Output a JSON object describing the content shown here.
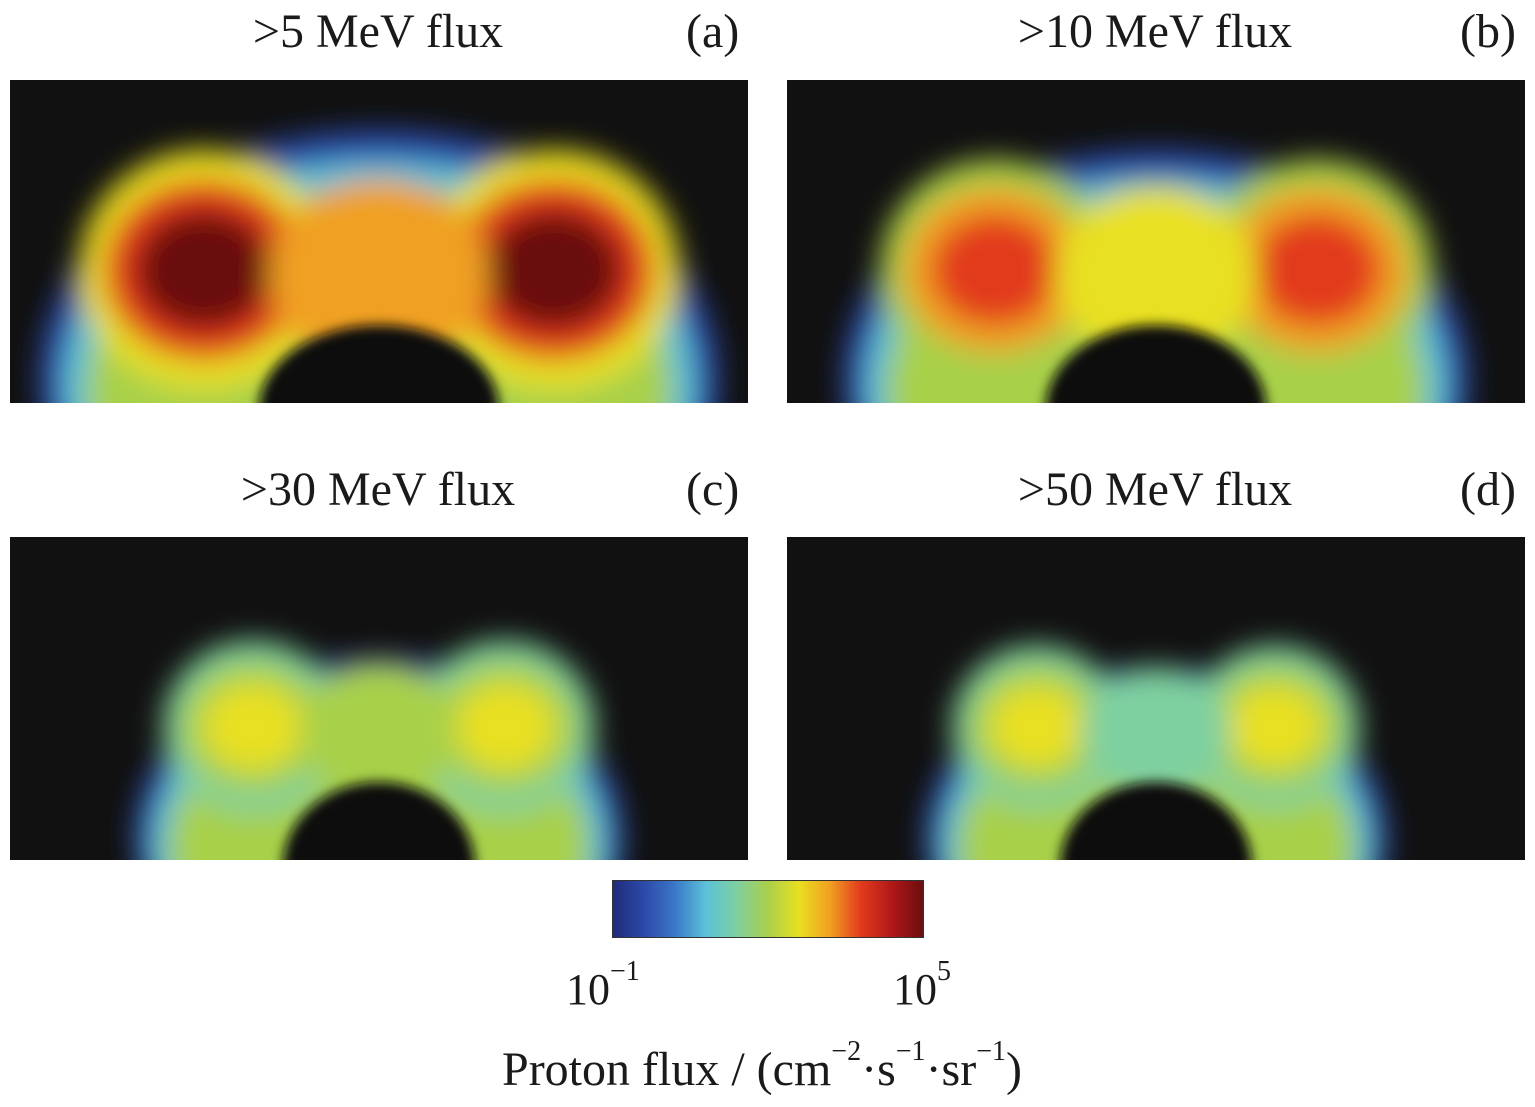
{
  "chart_data": {
    "type": "heatmap",
    "panels": [
      {
        "title": ">5 MeV flux",
        "letter": "(a)",
        "threshold_MeV": 5,
        "peak_level": 1.0,
        "extent": 1.0
      },
      {
        "title": ">10 MeV flux",
        "letter": "(b)",
        "threshold_MeV": 10,
        "peak_level": 0.86,
        "extent": 0.92
      },
      {
        "title": ">30 MeV flux",
        "letter": "(c)",
        "threshold_MeV": 30,
        "peak_level": 0.68,
        "extent": 0.72
      },
      {
        "title": ">50 MeV flux",
        "letter": "(d)",
        "threshold_MeV": 50,
        "peak_level": 0.6,
        "extent": 0.68
      }
    ],
    "colorbar": {
      "label_main": "Proton flux / (cm",
      "label_exp1": "−2",
      "label_mid1": "·s",
      "label_exp2": "−1",
      "label_mid2": "·sr",
      "label_exp3": "−1",
      "label_end": ")",
      "tick_min_base": "10",
      "tick_min_exp": "−1",
      "tick_max_base": "10",
      "tick_max_exp": "5",
      "range_log10": [
        -1,
        5
      ],
      "colors": [
        "#1f2b7a",
        "#2c49a8",
        "#3a78c8",
        "#5bc2d8",
        "#7ed0a0",
        "#a8d04a",
        "#e8e020",
        "#f0a020",
        "#e23a1e",
        "#b01818",
        "#6a0e10"
      ]
    }
  }
}
